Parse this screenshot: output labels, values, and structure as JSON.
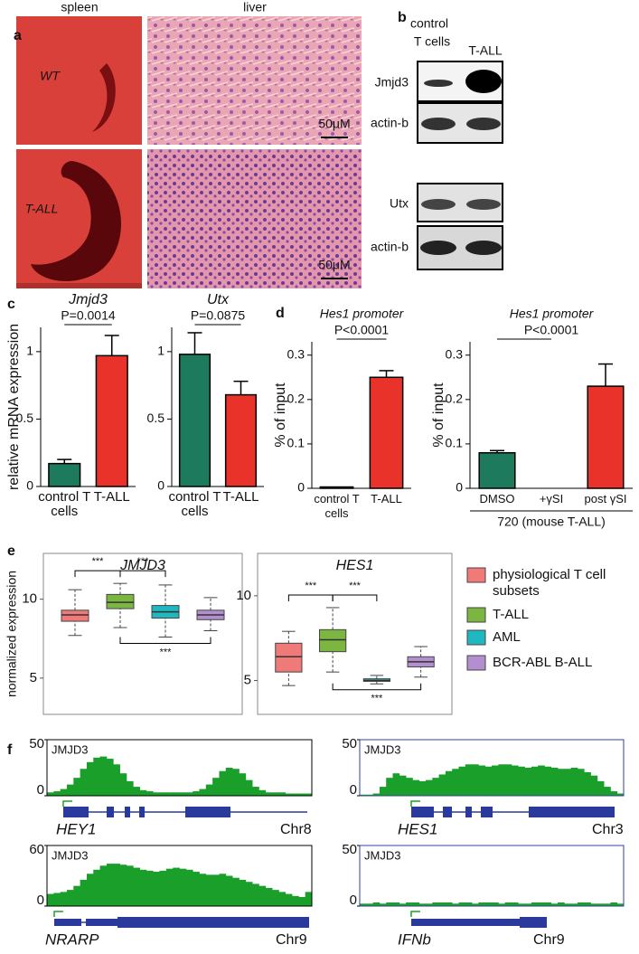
{
  "panel_labels": [
    "a",
    "b",
    "c",
    "d",
    "e",
    "f"
  ],
  "panel_a": {
    "columns": [
      "spleen",
      "liver"
    ],
    "rows": [
      "WT",
      "T-ALL"
    ],
    "scale_bars": [
      "50μM",
      "50μM"
    ]
  },
  "panel_b": {
    "lane_labels": [
      [
        "control",
        "T cells"
      ],
      [
        "T-ALL"
      ]
    ],
    "blots": [
      "Jmjd3",
      "actin-b",
      "Utx",
      "actin-b"
    ]
  },
  "chart_data": [
    {
      "type": "bar",
      "title": "Jmjd3",
      "annotation": "P=0.0014",
      "ylabel": "relative mRNA expression",
      "categories": [
        "control T cells",
        "T-ALL"
      ],
      "values": [
        0.17,
        0.97
      ],
      "errors": [
        0.03,
        0.15
      ],
      "colors": [
        "#1e7a5c",
        "#e8322a"
      ],
      "ylim": [
        0,
        1.18
      ],
      "yticks": [
        0,
        0.5,
        1
      ]
    },
    {
      "type": "bar",
      "title": "Utx",
      "annotation": "P=0.0875",
      "categories": [
        "control T cells",
        "T-ALL"
      ],
      "values": [
        0.98,
        0.68
      ],
      "errors": [
        0.16,
        0.1
      ],
      "colors": [
        "#1e7a5c",
        "#e8322a"
      ],
      "ylim": [
        0,
        1.18
      ],
      "yticks": [
        0,
        0.5,
        1
      ]
    },
    {
      "type": "bar",
      "title": "Hes1 promoter",
      "annotation": "P<0.0001",
      "ylabel": "% of input",
      "categories": [
        "control T cells",
        "T-ALL"
      ],
      "values": [
        0.003,
        0.25
      ],
      "errors": [
        0,
        0.015
      ],
      "colors": [
        "#1e7a5c",
        "#e8322a"
      ],
      "ylim": [
        0,
        0.33
      ],
      "yticks": [
        0,
        0.1,
        0.2,
        0.3
      ]
    },
    {
      "type": "bar",
      "title": "Hes1 promoter",
      "annotation": "P<0.0001",
      "ylabel": "% of input",
      "xlabel": "720 (mouse T-ALL)",
      "categories": [
        "DMSO",
        "+γSI",
        "post γSI"
      ],
      "values": [
        0.08,
        0,
        0.23
      ],
      "errors": [
        0.005,
        0,
        0.05
      ],
      "colors": [
        "#1e7a5c",
        "#e8322a",
        "#e8322a"
      ],
      "ylim": [
        0,
        0.33
      ],
      "yticks": [
        0,
        0.1,
        0.2,
        0.3
      ]
    },
    {
      "type": "box",
      "title": "JMJD3",
      "ylabel": "normalized expression",
      "ylim": [
        2.7,
        12.9
      ],
      "yticks": [
        5,
        10
      ],
      "significance": [
        "***",
        "***",
        "***"
      ],
      "series": [
        {
          "color": "#f07a78",
          "whislo": 7.7,
          "q1": 8.6,
          "med": 9.0,
          "q3": 9.3,
          "whishi": 10.6
        },
        {
          "color": "#7ab640",
          "whislo": 8.2,
          "q1": 9.4,
          "med": 9.8,
          "q3": 10.3,
          "whishi": 11.0
        },
        {
          "color": "#20b8c0",
          "whislo": 7.6,
          "q1": 8.8,
          "med": 9.2,
          "q3": 9.6,
          "whishi": 10.9
        },
        {
          "color": "#b48fd0",
          "whislo": 8.0,
          "q1": 8.7,
          "med": 9.0,
          "q3": 9.3,
          "whishi": 10.1
        }
      ]
    },
    {
      "type": "box",
      "title": "HES1",
      "ylim": [
        3,
        12.5
      ],
      "yticks": [
        5,
        10
      ],
      "significance": [
        "***",
        "***",
        "***"
      ],
      "series": [
        {
          "name": "physiological T cell subsets",
          "color": "#f07a78",
          "whislo": 4.7,
          "q1": 5.5,
          "med": 6.4,
          "q3": 7.2,
          "whishi": 7.9
        },
        {
          "name": "T-ALL",
          "color": "#7ab640",
          "whislo": 5.5,
          "q1": 6.7,
          "med": 7.4,
          "q3": 8.0,
          "whishi": 9.3
        },
        {
          "name": "AML",
          "color": "#20b8c0",
          "whislo": 4.8,
          "q1": 4.95,
          "med": 5.0,
          "q3": 5.1,
          "whishi": 5.3
        },
        {
          "name": "BCR-ABL B-ALL",
          "color": "#b48fd0",
          "whislo": 5.2,
          "q1": 5.8,
          "med": 6.1,
          "q3": 6.4,
          "whishi": 7.0
        }
      ]
    },
    {
      "type": "area",
      "label": "JMJD3",
      "gene": "HEY1",
      "chromosome": "Chr8",
      "color": "#1aa02a",
      "border": "#000000",
      "ylim": [
        0,
        50
      ],
      "yticks": [
        0,
        50
      ],
      "values": [
        3,
        4,
        6,
        10,
        16,
        24,
        30,
        34,
        35,
        33,
        28,
        20,
        13,
        8,
        5,
        4,
        3,
        3,
        3,
        3,
        3,
        3,
        4,
        6,
        10,
        16,
        22,
        25,
        24,
        20,
        14,
        8,
        5,
        3,
        3,
        3,
        2,
        2,
        2,
        2
      ]
    },
    {
      "type": "area",
      "label": "JMJD3",
      "gene": "HES1",
      "chromosome": "Chr3",
      "color": "#1aa02a",
      "border": "#3040a0",
      "ylim": [
        0,
        50
      ],
      "yticks": [
        0,
        50
      ],
      "values": [
        1,
        1,
        2,
        8,
        16,
        20,
        18,
        16,
        14,
        13,
        14,
        16,
        19,
        22,
        24,
        26,
        28,
        28,
        27,
        26,
        27,
        28,
        28,
        27,
        26,
        25,
        26,
        27,
        26,
        25,
        24,
        24,
        25,
        24,
        21,
        18,
        13,
        8,
        4,
        2
      ]
    },
    {
      "type": "area",
      "label": "JMJD3",
      "gene": "NRARP",
      "chromosome": "Chr9",
      "color": "#1aa02a",
      "border": "#000000",
      "ylim": [
        0,
        60
      ],
      "yticks": [
        0,
        60
      ],
      "values": [
        12,
        13,
        14,
        16,
        20,
        26,
        32,
        36,
        40,
        42,
        42,
        41,
        40,
        38,
        36,
        35,
        34,
        35,
        37,
        38,
        37,
        36,
        34,
        32,
        31,
        31,
        32,
        30,
        28,
        26,
        24,
        22,
        20,
        18,
        16,
        14,
        12,
        10,
        9,
        14
      ]
    },
    {
      "type": "area",
      "label": "JMJD3",
      "gene": "IFNb",
      "chromosome": "Chr9",
      "color": "#1aa02a",
      "border": "#3040a0",
      "ylim": [
        0,
        50
      ],
      "yticks": [
        0,
        50
      ],
      "values": [
        2,
        2,
        3,
        2,
        3,
        3,
        2,
        3,
        3,
        2,
        2,
        3,
        3,
        3,
        2,
        3,
        3,
        2,
        3,
        3,
        3,
        2,
        3,
        3,
        2,
        2,
        3,
        3,
        3,
        2,
        3,
        2,
        2,
        3,
        3,
        2,
        2,
        2,
        3,
        2
      ]
    }
  ]
}
